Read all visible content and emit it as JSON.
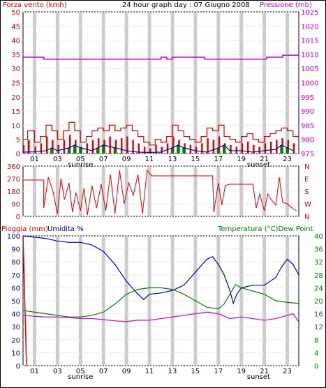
{
  "header": {
    "left_title": "Forza vento (kmh)",
    "center_title": "24 hour graph day : 07 Giugno 2008",
    "right_title": "Pressione (mb)"
  },
  "bottom_header": {
    "left_title_1": "Pioggia (mm)",
    "left_title_2": "Umidita %",
    "right_title": "Temperatura (°C)Dew Point"
  },
  "labels": {
    "sunrise": "sunrise",
    "sunset": "sunset"
  },
  "colors": {
    "wind": "#e00000",
    "gust": "#e00000",
    "avgwind_blue": "#0000c0",
    "avgwind_green": "#008000",
    "pressure": "#d000d0",
    "direction": "#e00000",
    "humidity": "#0000c0",
    "temperature": "#008000",
    "dewpoint": "#d000d0",
    "rain": "#e00000",
    "grid_band": "#cccccc",
    "grid_line": "#dddddd"
  },
  "chart_data": [
    {
      "type": "bar",
      "name": "wind",
      "title": "24 hour graph day : 07 Giugno 2008",
      "ylabel_left": "Forza vento (kmh)",
      "ylabel_right": "Pressione (mb)",
      "y_ticks_left": [
        "0",
        "5",
        "10",
        "15",
        "20",
        "25",
        "30",
        "35",
        "40",
        "45",
        "50"
      ],
      "y_ticks_right": [
        "975",
        "980",
        "985",
        "990",
        "995",
        "1000",
        "1005",
        "1010",
        "1015",
        "1020",
        "1025"
      ],
      "ylim_left": [
        0,
        50
      ],
      "ylim_right": [
        975,
        1025
      ],
      "x_ticks": [
        "01",
        "03",
        "05",
        "07",
        "09",
        "11",
        "13",
        "15",
        "17",
        "19",
        "21",
        "23"
      ],
      "x_range_hours": [
        0,
        24
      ],
      "wind_gust_kmh_by_hour": [
        [
          0,
          5
        ],
        [
          0.4,
          8
        ],
        [
          1,
          4
        ],
        [
          1.5,
          6
        ],
        [
          2,
          10
        ],
        [
          2.5,
          8
        ],
        [
          3,
          5
        ],
        [
          3.5,
          8
        ],
        [
          4,
          11
        ],
        [
          4.5,
          8
        ],
        [
          5,
          4
        ],
        [
          5.5,
          6
        ],
        [
          6,
          8
        ],
        [
          6.5,
          9
        ],
        [
          7,
          8
        ],
        [
          7.5,
          10
        ],
        [
          8,
          8
        ],
        [
          8.5,
          9
        ],
        [
          9,
          10
        ],
        [
          9.5,
          8
        ],
        [
          10,
          6
        ],
        [
          10.5,
          4
        ],
        [
          11,
          3
        ],
        [
          11.5,
          5
        ],
        [
          12,
          4
        ],
        [
          12.5,
          6
        ],
        [
          13,
          10
        ],
        [
          13.5,
          8
        ],
        [
          14,
          6
        ],
        [
          14.5,
          5
        ],
        [
          15,
          4
        ],
        [
          15.5,
          6
        ],
        [
          16,
          9
        ],
        [
          16.5,
          8
        ],
        [
          17,
          10
        ],
        [
          17.5,
          6
        ],
        [
          18,
          5
        ],
        [
          18.5,
          4
        ],
        [
          19,
          6
        ],
        [
          19.5,
          7
        ],
        [
          20,
          5
        ],
        [
          20.5,
          4
        ],
        [
          21,
          6
        ],
        [
          21.5,
          7
        ],
        [
          22,
          8
        ],
        [
          22.5,
          9
        ],
        [
          23,
          8
        ],
        [
          23.5,
          6
        ]
      ],
      "wind_avg_kmh_by_hour": [
        [
          0,
          0.5
        ],
        [
          1,
          0.6
        ],
        [
          2,
          1
        ],
        [
          2.5,
          2
        ],
        [
          3,
          1
        ],
        [
          4,
          2
        ],
        [
          4.5,
          3
        ],
        [
          5,
          2
        ],
        [
          6,
          1
        ],
        [
          6.5,
          2
        ],
        [
          7,
          3
        ],
        [
          8,
          2
        ],
        [
          9,
          1
        ],
        [
          10,
          0.5
        ],
        [
          11,
          0.4
        ],
        [
          12,
          0.5
        ],
        [
          13,
          2
        ],
        [
          13.5,
          3
        ],
        [
          14,
          2
        ],
        [
          15,
          1
        ],
        [
          16,
          0.5
        ],
        [
          17,
          2
        ],
        [
          17.5,
          3
        ],
        [
          18,
          1
        ],
        [
          19,
          1
        ],
        [
          20,
          0.5
        ],
        [
          21,
          1
        ],
        [
          22,
          1.5
        ],
        [
          22.5,
          3
        ],
        [
          23,
          2
        ],
        [
          23.5,
          1
        ]
      ],
      "pressure_mb_by_hour": [
        [
          0,
          1009
        ],
        [
          1.8,
          1009
        ],
        [
          1.8,
          1008.3
        ],
        [
          12,
          1008.3
        ],
        [
          12,
          1009
        ],
        [
          12.5,
          1009
        ],
        [
          12.5,
          1008.3
        ],
        [
          13,
          1008.3
        ],
        [
          13,
          1009
        ],
        [
          15.8,
          1009
        ],
        [
          15.8,
          1008.3
        ],
        [
          21.2,
          1008.3
        ],
        [
          21.2,
          1009
        ],
        [
          22.6,
          1009
        ],
        [
          22.6,
          1009.7
        ],
        [
          24,
          1009.7
        ]
      ]
    },
    {
      "type": "line",
      "name": "wind_direction",
      "y_ticks_left": [
        "0",
        "90",
        "180",
        "270",
        "360"
      ],
      "y_ticks_right": [
        "N",
        "E",
        "S",
        "W",
        "N"
      ],
      "ylim_left": [
        0,
        360
      ],
      "direction_deg_by_hour": [
        [
          0,
          260
        ],
        [
          1.8,
          260
        ],
        [
          1.8,
          60
        ],
        [
          2.2,
          280
        ],
        [
          2.6,
          180
        ],
        [
          3,
          20
        ],
        [
          3.3,
          270
        ],
        [
          3.6,
          120
        ],
        [
          4,
          240
        ],
        [
          4.3,
          30
        ],
        [
          4.6,
          170
        ],
        [
          5,
          40
        ],
        [
          5.3,
          200
        ],
        [
          5.6,
          10
        ],
        [
          6,
          220
        ],
        [
          6.4,
          60
        ],
        [
          6.8,
          230
        ],
        [
          7.2,
          40
        ],
        [
          7.6,
          300
        ],
        [
          8,
          20
        ],
        [
          8.4,
          330
        ],
        [
          8.8,
          90
        ],
        [
          9.2,
          240
        ],
        [
          9.6,
          150
        ],
        [
          10,
          300
        ],
        [
          10.4,
          20
        ],
        [
          10.8,
          330
        ],
        [
          11.2,
          290
        ],
        [
          12,
          290
        ],
        [
          13,
          290
        ],
        [
          14,
          290
        ],
        [
          15,
          290
        ],
        [
          16,
          290
        ],
        [
          16.5,
          290
        ],
        [
          16.6,
          30
        ],
        [
          17,
          240
        ],
        [
          17.3,
          80
        ],
        [
          17.6,
          220
        ],
        [
          18,
          230
        ],
        [
          19,
          230
        ],
        [
          20,
          230
        ],
        [
          20.3,
          60
        ],
        [
          20.6,
          160
        ],
        [
          21,
          40
        ],
        [
          21.3,
          160
        ],
        [
          21.6,
          120
        ],
        [
          22,
          80
        ],
        [
          22.3,
          280
        ],
        [
          22.6,
          100
        ],
        [
          23,
          90
        ],
        [
          23.4,
          60
        ],
        [
          23.8,
          40
        ]
      ]
    },
    {
      "type": "line",
      "name": "humidity_temperature",
      "ylabel_left": "Umidita %",
      "ylabel_left_2": "Pioggia (mm)",
      "ylabel_right": "Temperatura (°C)Dew Point",
      "y_ticks_left": [
        "0",
        "10",
        "20",
        "30",
        "40",
        "50",
        "60",
        "70",
        "80",
        "90",
        "100"
      ],
      "y_ticks_right": [
        "0",
        "4",
        "8",
        "12",
        "16",
        "20",
        "24",
        "28",
        "32",
        "36",
        "40"
      ],
      "ylim_left": [
        0,
        100
      ],
      "ylim_right": [
        0,
        40
      ],
      "humidity_pct_by_hour": [
        [
          0,
          100
        ],
        [
          1,
          99
        ],
        [
          2,
          98
        ],
        [
          3,
          96
        ],
        [
          4,
          95
        ],
        [
          5,
          95
        ],
        [
          6,
          93
        ],
        [
          7,
          88
        ],
        [
          8,
          78
        ],
        [
          9,
          65
        ],
        [
          10,
          55
        ],
        [
          10.5,
          51
        ],
        [
          11,
          55
        ],
        [
          12,
          56
        ],
        [
          13,
          58
        ],
        [
          14,
          62
        ],
        [
          15,
          72
        ],
        [
          16,
          82
        ],
        [
          16.5,
          84
        ],
        [
          17,
          78
        ],
        [
          17.5,
          70
        ],
        [
          18,
          58
        ],
        [
          18.3,
          48
        ],
        [
          18.6,
          55
        ],
        [
          19,
          60
        ],
        [
          20,
          62
        ],
        [
          21,
          62
        ],
        [
          22,
          68
        ],
        [
          22.5,
          76
        ],
        [
          23,
          82
        ],
        [
          23.5,
          78
        ],
        [
          24,
          70
        ]
      ],
      "temperature_c_by_hour": [
        [
          0,
          17
        ],
        [
          1,
          16.5
        ],
        [
          2,
          16
        ],
        [
          3,
          15.5
        ],
        [
          4,
          15
        ],
        [
          5,
          15
        ],
        [
          6,
          15.5
        ],
        [
          7,
          16.5
        ],
        [
          8,
          19
        ],
        [
          9,
          22
        ],
        [
          10,
          23.5
        ],
        [
          11,
          24
        ],
        [
          12,
          24
        ],
        [
          13,
          23.5
        ],
        [
          14,
          22
        ],
        [
          15,
          20
        ],
        [
          16,
          18
        ],
        [
          17,
          17.5
        ],
        [
          17.5,
          19
        ],
        [
          18,
          22
        ],
        [
          18.5,
          25
        ],
        [
          19,
          24
        ],
        [
          20,
          23
        ],
        [
          21,
          22
        ],
        [
          22,
          20
        ],
        [
          23,
          19.5
        ],
        [
          24,
          19.2
        ]
      ],
      "dewpoint_c_by_hour": [
        [
          0,
          15.5
        ],
        [
          1,
          15.2
        ],
        [
          2,
          15
        ],
        [
          3,
          15
        ],
        [
          4,
          14.8
        ],
        [
          5,
          14.5
        ],
        [
          6,
          14.5
        ],
        [
          7,
          14.2
        ],
        [
          8,
          13.8
        ],
        [
          9,
          13.6
        ],
        [
          10,
          14
        ],
        [
          11,
          14
        ],
        [
          12,
          14.5
        ],
        [
          13,
          15
        ],
        [
          14,
          15.5
        ],
        [
          15,
          16
        ],
        [
          16,
          16.5
        ],
        [
          17,
          16
        ],
        [
          18,
          14.5
        ],
        [
          19,
          15
        ],
        [
          20,
          14.5
        ],
        [
          21,
          14
        ],
        [
          22,
          14.5
        ],
        [
          23,
          15.5
        ],
        [
          23.5,
          16
        ],
        [
          24,
          13.5
        ]
      ],
      "rain_mm_by_hour": [
        [
          0,
          100
        ],
        [
          0.3,
          0
        ]
      ]
    }
  ]
}
